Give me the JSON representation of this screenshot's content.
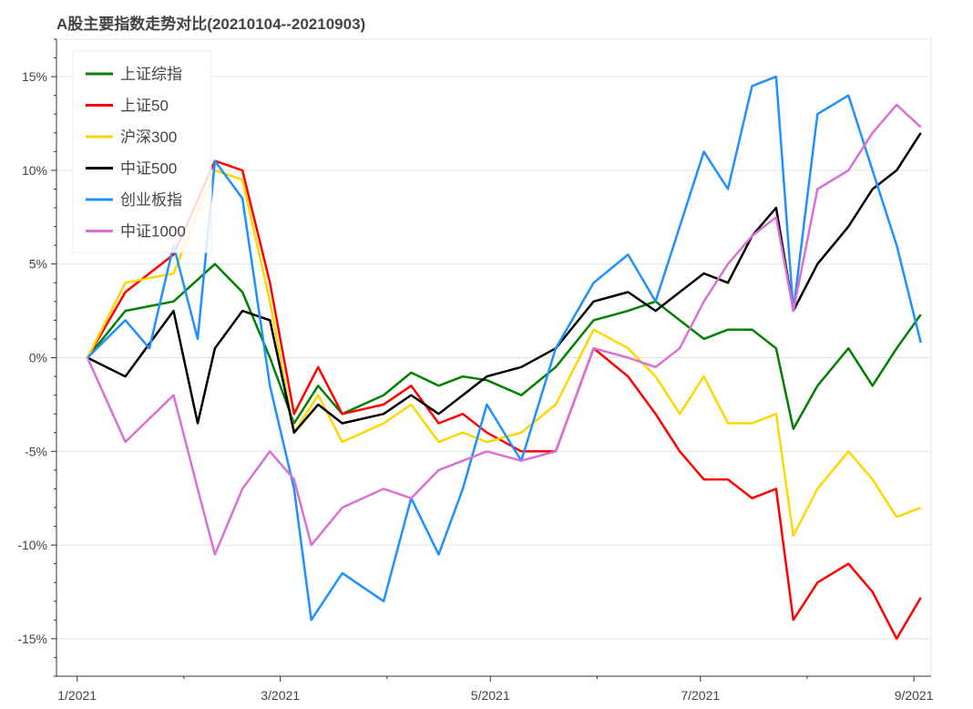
{
  "chart_data": {
    "type": "line",
    "title": "A股主要指数走势对比(20210104--20210903)",
    "xlabel": "",
    "ylabel": "",
    "x_range": [
      "2020-12-26",
      "2021-09-06"
    ],
    "ylim": [
      -17.0,
      17.0
    ],
    "x_ticks": [
      {
        "date": "2021-01-01",
        "label": "1/2021"
      },
      {
        "date": "2021-03-01",
        "label": "3/2021"
      },
      {
        "date": "2021-05-01",
        "label": "5/2021"
      },
      {
        "date": "2021-07-01",
        "label": "7/2021"
      },
      {
        "date": "2021-09-01",
        "label": "9/2021"
      }
    ],
    "y_ticks": [
      {
        "value": 15,
        "label": "15%"
      },
      {
        "value": 10,
        "label": "10%"
      },
      {
        "value": 5,
        "label": "5%"
      },
      {
        "value": 0,
        "label": "0%"
      },
      {
        "value": -5,
        "label": "-5%"
      },
      {
        "value": -10,
        "label": "-10%"
      },
      {
        "value": -15,
        "label": "-15%"
      }
    ],
    "grid": true,
    "legend_position": "top-left",
    "series": [
      {
        "name": "上证综指",
        "color": "#008000",
        "points": [
          [
            "2021-01-04",
            0.0
          ],
          [
            "2021-01-15",
            2.5
          ],
          [
            "2021-01-29",
            3.0
          ],
          [
            "2021-02-10",
            5.0
          ],
          [
            "2021-02-18",
            3.5
          ],
          [
            "2021-02-26",
            0.0
          ],
          [
            "2021-03-05",
            -3.5
          ],
          [
            "2021-03-12",
            -1.5
          ],
          [
            "2021-03-19",
            -3.0
          ],
          [
            "2021-03-31",
            -2.0
          ],
          [
            "2021-04-08",
            -0.8
          ],
          [
            "2021-04-16",
            -1.5
          ],
          [
            "2021-04-23",
            -1.0
          ],
          [
            "2021-04-30",
            -1.2
          ],
          [
            "2021-05-10",
            -2.0
          ],
          [
            "2021-05-20",
            -0.5
          ],
          [
            "2021-05-31",
            2.0
          ],
          [
            "2021-06-10",
            2.5
          ],
          [
            "2021-06-18",
            3.0
          ],
          [
            "2021-06-25",
            2.0
          ],
          [
            "2021-07-02",
            1.0
          ],
          [
            "2021-07-09",
            1.5
          ],
          [
            "2021-07-16",
            1.5
          ],
          [
            "2021-07-23",
            0.5
          ],
          [
            "2021-07-28",
            -3.8
          ],
          [
            "2021-08-04",
            -1.5
          ],
          [
            "2021-08-13",
            0.5
          ],
          [
            "2021-08-20",
            -1.5
          ],
          [
            "2021-08-27",
            0.5
          ],
          [
            "2021-09-03",
            2.3
          ]
        ]
      },
      {
        "name": "上证50",
        "color": "#ff0000",
        "points": [
          [
            "2021-01-04",
            0.0
          ],
          [
            "2021-01-15",
            3.5
          ],
          [
            "2021-01-29",
            5.5
          ],
          [
            "2021-02-10",
            10.5
          ],
          [
            "2021-02-18",
            10.0
          ],
          [
            "2021-02-26",
            4.0
          ],
          [
            "2021-03-05",
            -3.0
          ],
          [
            "2021-03-12",
            -0.5
          ],
          [
            "2021-03-19",
            -3.0
          ],
          [
            "2021-03-31",
            -2.5
          ],
          [
            "2021-04-08",
            -1.5
          ],
          [
            "2021-04-16",
            -3.5
          ],
          [
            "2021-04-23",
            -3.0
          ],
          [
            "2021-04-30",
            -4.0
          ],
          [
            "2021-05-10",
            -5.0
          ],
          [
            "2021-05-20",
            -5.0
          ],
          [
            "2021-05-31",
            0.5
          ],
          [
            "2021-06-10",
            -1.0
          ],
          [
            "2021-06-18",
            -3.0
          ],
          [
            "2021-06-25",
            -5.0
          ],
          [
            "2021-07-02",
            -6.5
          ],
          [
            "2021-07-09",
            -6.5
          ],
          [
            "2021-07-16",
            -7.5
          ],
          [
            "2021-07-23",
            -7.0
          ],
          [
            "2021-07-28",
            -14.0
          ],
          [
            "2021-08-04",
            -12.0
          ],
          [
            "2021-08-13",
            -11.0
          ],
          [
            "2021-08-20",
            -12.5
          ],
          [
            "2021-08-27",
            -15.0
          ],
          [
            "2021-09-03",
            -12.8
          ]
        ]
      },
      {
        "name": "沪深300",
        "color": "#ffd700",
        "points": [
          [
            "2021-01-04",
            0.0
          ],
          [
            "2021-01-15",
            4.0
          ],
          [
            "2021-01-29",
            4.5
          ],
          [
            "2021-02-10",
            10.0
          ],
          [
            "2021-02-18",
            9.5
          ],
          [
            "2021-02-26",
            3.0
          ],
          [
            "2021-03-05",
            -4.0
          ],
          [
            "2021-03-12",
            -2.0
          ],
          [
            "2021-03-19",
            -4.5
          ],
          [
            "2021-03-31",
            -3.5
          ],
          [
            "2021-04-08",
            -2.5
          ],
          [
            "2021-04-16",
            -4.5
          ],
          [
            "2021-04-23",
            -4.0
          ],
          [
            "2021-04-30",
            -4.5
          ],
          [
            "2021-05-10",
            -4.0
          ],
          [
            "2021-05-20",
            -2.5
          ],
          [
            "2021-05-31",
            1.5
          ],
          [
            "2021-06-10",
            0.5
          ],
          [
            "2021-06-18",
            -1.0
          ],
          [
            "2021-06-25",
            -3.0
          ],
          [
            "2021-07-02",
            -1.0
          ],
          [
            "2021-07-09",
            -3.5
          ],
          [
            "2021-07-16",
            -3.5
          ],
          [
            "2021-07-23",
            -3.0
          ],
          [
            "2021-07-28",
            -9.5
          ],
          [
            "2021-08-04",
            -7.0
          ],
          [
            "2021-08-13",
            -5.0
          ],
          [
            "2021-08-20",
            -6.5
          ],
          [
            "2021-08-27",
            -8.5
          ],
          [
            "2021-09-03",
            -8.0
          ]
        ]
      },
      {
        "name": "中证500",
        "color": "#000000",
        "points": [
          [
            "2021-01-04",
            0.0
          ],
          [
            "2021-01-15",
            -1.0
          ],
          [
            "2021-01-29",
            2.5
          ],
          [
            "2021-02-05",
            -3.5
          ],
          [
            "2021-02-10",
            0.5
          ],
          [
            "2021-02-18",
            2.5
          ],
          [
            "2021-02-26",
            2.0
          ],
          [
            "2021-03-05",
            -4.0
          ],
          [
            "2021-03-12",
            -2.5
          ],
          [
            "2021-03-19",
            -3.5
          ],
          [
            "2021-03-31",
            -3.0
          ],
          [
            "2021-04-08",
            -2.0
          ],
          [
            "2021-04-16",
            -3.0
          ],
          [
            "2021-04-23",
            -2.0
          ],
          [
            "2021-04-30",
            -1.0
          ],
          [
            "2021-05-10",
            -0.5
          ],
          [
            "2021-05-20",
            0.5
          ],
          [
            "2021-05-31",
            3.0
          ],
          [
            "2021-06-10",
            3.5
          ],
          [
            "2021-06-18",
            2.5
          ],
          [
            "2021-06-25",
            3.5
          ],
          [
            "2021-07-02",
            4.5
          ],
          [
            "2021-07-09",
            4.0
          ],
          [
            "2021-07-16",
            6.5
          ],
          [
            "2021-07-23",
            8.0
          ],
          [
            "2021-07-28",
            2.5
          ],
          [
            "2021-08-04",
            5.0
          ],
          [
            "2021-08-13",
            7.0
          ],
          [
            "2021-08-20",
            9.0
          ],
          [
            "2021-08-27",
            10.0
          ],
          [
            "2021-09-03",
            12.0
          ]
        ]
      },
      {
        "name": "创业板指",
        "color": "#1e90ff",
        "points": [
          [
            "2021-01-04",
            0.0
          ],
          [
            "2021-01-15",
            2.0
          ],
          [
            "2021-01-22",
            0.5
          ],
          [
            "2021-01-29",
            6.0
          ],
          [
            "2021-02-05",
            1.0
          ],
          [
            "2021-02-10",
            10.5
          ],
          [
            "2021-02-18",
            8.5
          ],
          [
            "2021-02-26",
            -1.5
          ],
          [
            "2021-03-05",
            -7.0
          ],
          [
            "2021-03-10",
            -14.0
          ],
          [
            "2021-03-19",
            -11.5
          ],
          [
            "2021-03-31",
            -13.0
          ],
          [
            "2021-04-08",
            -7.5
          ],
          [
            "2021-04-16",
            -10.5
          ],
          [
            "2021-04-23",
            -7.0
          ],
          [
            "2021-04-30",
            -2.5
          ],
          [
            "2021-05-10",
            -5.5
          ],
          [
            "2021-05-20",
            0.5
          ],
          [
            "2021-05-31",
            4.0
          ],
          [
            "2021-06-10",
            5.5
          ],
          [
            "2021-06-18",
            3.0
          ],
          [
            "2021-06-25",
            7.0
          ],
          [
            "2021-07-02",
            11.0
          ],
          [
            "2021-07-09",
            9.0
          ],
          [
            "2021-07-16",
            14.5
          ],
          [
            "2021-07-23",
            15.0
          ],
          [
            "2021-07-28",
            2.5
          ],
          [
            "2021-08-04",
            13.0
          ],
          [
            "2021-08-13",
            14.0
          ],
          [
            "2021-08-20",
            10.0
          ],
          [
            "2021-08-27",
            6.0
          ],
          [
            "2021-09-03",
            0.8
          ]
        ]
      },
      {
        "name": "中证1000",
        "color": "#da70d6",
        "points": [
          [
            "2021-01-04",
            0.0
          ],
          [
            "2021-01-15",
            -4.5
          ],
          [
            "2021-01-29",
            -2.0
          ],
          [
            "2021-02-05",
            -7.0
          ],
          [
            "2021-02-10",
            -10.5
          ],
          [
            "2021-02-18",
            -7.0
          ],
          [
            "2021-02-26",
            -5.0
          ],
          [
            "2021-03-05",
            -6.5
          ],
          [
            "2021-03-10",
            -10.0
          ],
          [
            "2021-03-19",
            -8.0
          ],
          [
            "2021-03-31",
            -7.0
          ],
          [
            "2021-04-08",
            -7.5
          ],
          [
            "2021-04-16",
            -6.0
          ],
          [
            "2021-04-23",
            -5.5
          ],
          [
            "2021-04-30",
            -5.0
          ],
          [
            "2021-05-10",
            -5.5
          ],
          [
            "2021-05-20",
            -5.0
          ],
          [
            "2021-05-31",
            0.5
          ],
          [
            "2021-06-10",
            0.0
          ],
          [
            "2021-06-18",
            -0.5
          ],
          [
            "2021-06-25",
            0.5
          ],
          [
            "2021-07-02",
            3.0
          ],
          [
            "2021-07-09",
            5.0
          ],
          [
            "2021-07-16",
            6.5
          ],
          [
            "2021-07-23",
            7.5
          ],
          [
            "2021-07-28",
            2.5
          ],
          [
            "2021-08-04",
            9.0
          ],
          [
            "2021-08-13",
            10.0
          ],
          [
            "2021-08-20",
            12.0
          ],
          [
            "2021-08-27",
            13.5
          ],
          [
            "2021-09-03",
            12.3
          ]
        ]
      }
    ]
  }
}
